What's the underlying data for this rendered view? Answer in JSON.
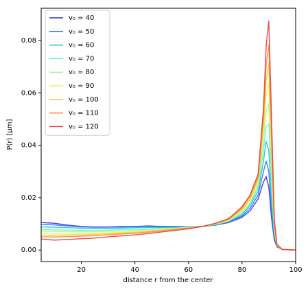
{
  "chart_data": {
    "type": "line",
    "xlabel": "distance r from the center",
    "ylabel": "P(r) [μm]",
    "x": [
      5,
      10,
      15,
      20,
      25,
      30,
      35,
      40,
      45,
      50,
      55,
      60,
      65,
      70,
      75,
      80,
      83,
      86,
      88,
      89,
      90,
      91,
      92,
      93,
      95,
      100
    ],
    "xlim": [
      5,
      100
    ],
    "xticks": [
      20,
      40,
      60,
      80,
      100
    ],
    "ylim": [
      -0.0044,
      0.0923
    ],
    "yticks": [
      {
        "value": 0,
        "label": "0.00"
      },
      {
        "value": 0.02,
        "label": "0.02"
      },
      {
        "value": 0.04,
        "label": "0.04"
      },
      {
        "value": 0.06,
        "label": "0.06"
      },
      {
        "value": 0.08,
        "label": "0.08"
      }
    ],
    "legend": "upper left",
    "series": [
      {
        "name": "v₀ = 40",
        "color": "#2b2bd9",
        "values": [
          0.0105,
          0.0102,
          0.0095,
          0.009,
          0.0088,
          0.0088,
          0.009,
          0.009,
          0.0092,
          0.009,
          0.009,
          0.0088,
          0.009,
          0.0095,
          0.0105,
          0.0125,
          0.015,
          0.0195,
          0.026,
          0.028,
          0.024,
          0.012,
          0.004,
          0.0012,
          0.0002,
          0
        ]
      },
      {
        "name": "v₀ = 50",
        "color": "#2f6cf5",
        "values": [
          0.0098,
          0.0096,
          0.0092,
          0.0088,
          0.0087,
          0.0087,
          0.0088,
          0.0089,
          0.009,
          0.0089,
          0.0089,
          0.0088,
          0.009,
          0.0095,
          0.0107,
          0.013,
          0.016,
          0.021,
          0.03,
          0.034,
          0.03,
          0.015,
          0.005,
          0.0014,
          0.0002,
          0
        ]
      },
      {
        "name": "v₀ = 60",
        "color": "#1cbde0",
        "values": [
          0.0088,
          0.0087,
          0.0085,
          0.0083,
          0.0082,
          0.0082,
          0.0084,
          0.0085,
          0.0086,
          0.0086,
          0.0087,
          0.0087,
          0.009,
          0.0096,
          0.0109,
          0.0135,
          0.017,
          0.0225,
          0.034,
          0.0415,
          0.038,
          0.019,
          0.006,
          0.0015,
          0.0002,
          0
        ]
      },
      {
        "name": "v₀ = 70",
        "color": "#5ff5c9",
        "values": [
          0.0078,
          0.0077,
          0.0076,
          0.0075,
          0.0075,
          0.0076,
          0.0078,
          0.0079,
          0.008,
          0.0082,
          0.0084,
          0.0086,
          0.009,
          0.0097,
          0.011,
          0.014,
          0.0175,
          0.024,
          0.038,
          0.047,
          0.048,
          0.024,
          0.007,
          0.0016,
          0.0002,
          0
        ]
      },
      {
        "name": "v₀ = 80",
        "color": "#a3f78f",
        "values": [
          0.0072,
          0.0071,
          0.007,
          0.007,
          0.007,
          0.0071,
          0.0073,
          0.0075,
          0.0077,
          0.008,
          0.0083,
          0.0086,
          0.009,
          0.0098,
          0.0112,
          0.0145,
          0.018,
          0.025,
          0.042,
          0.053,
          0.056,
          0.029,
          0.008,
          0.0017,
          0.0002,
          0
        ]
      },
      {
        "name": "v₀ = 90",
        "color": "#e2f55c",
        "values": [
          0.0062,
          0.0062,
          0.0062,
          0.0063,
          0.0064,
          0.0066,
          0.0068,
          0.007,
          0.0073,
          0.0077,
          0.0081,
          0.0085,
          0.009,
          0.0099,
          0.0114,
          0.015,
          0.019,
          0.026,
          0.045,
          0.059,
          0.064,
          0.034,
          0.009,
          0.0018,
          0.0002,
          0
        ]
      },
      {
        "name": "v₀ = 100",
        "color": "#fcc72e",
        "values": [
          0.0056,
          0.0056,
          0.0057,
          0.0058,
          0.006,
          0.0062,
          0.0065,
          0.0067,
          0.0071,
          0.0075,
          0.008,
          0.0084,
          0.009,
          0.01,
          0.0116,
          0.0155,
          0.0195,
          0.027,
          0.048,
          0.065,
          0.0715,
          0.039,
          0.01,
          0.0019,
          0.0002,
          0
        ]
      },
      {
        "name": "v₀ = 110",
        "color": "#fc8530",
        "values": [
          0.005,
          0.005,
          0.0051,
          0.0053,
          0.0055,
          0.0058,
          0.0061,
          0.0064,
          0.0068,
          0.0073,
          0.0078,
          0.0083,
          0.009,
          0.0101,
          0.0118,
          0.016,
          0.0205,
          0.028,
          0.051,
          0.071,
          0.0785,
          0.044,
          0.011,
          0.002,
          0.0002,
          0
        ]
      },
      {
        "name": "v₀ = 120",
        "color": "#e33838",
        "values": [
          0.0042,
          0.0038,
          0.004,
          0.0043,
          0.0046,
          0.005,
          0.0054,
          0.0058,
          0.0063,
          0.0069,
          0.0075,
          0.0081,
          0.0089,
          0.0102,
          0.012,
          0.0165,
          0.021,
          0.029,
          0.054,
          0.078,
          0.0875,
          0.05,
          0.012,
          0.0021,
          0.0002,
          0
        ]
      }
    ]
  }
}
